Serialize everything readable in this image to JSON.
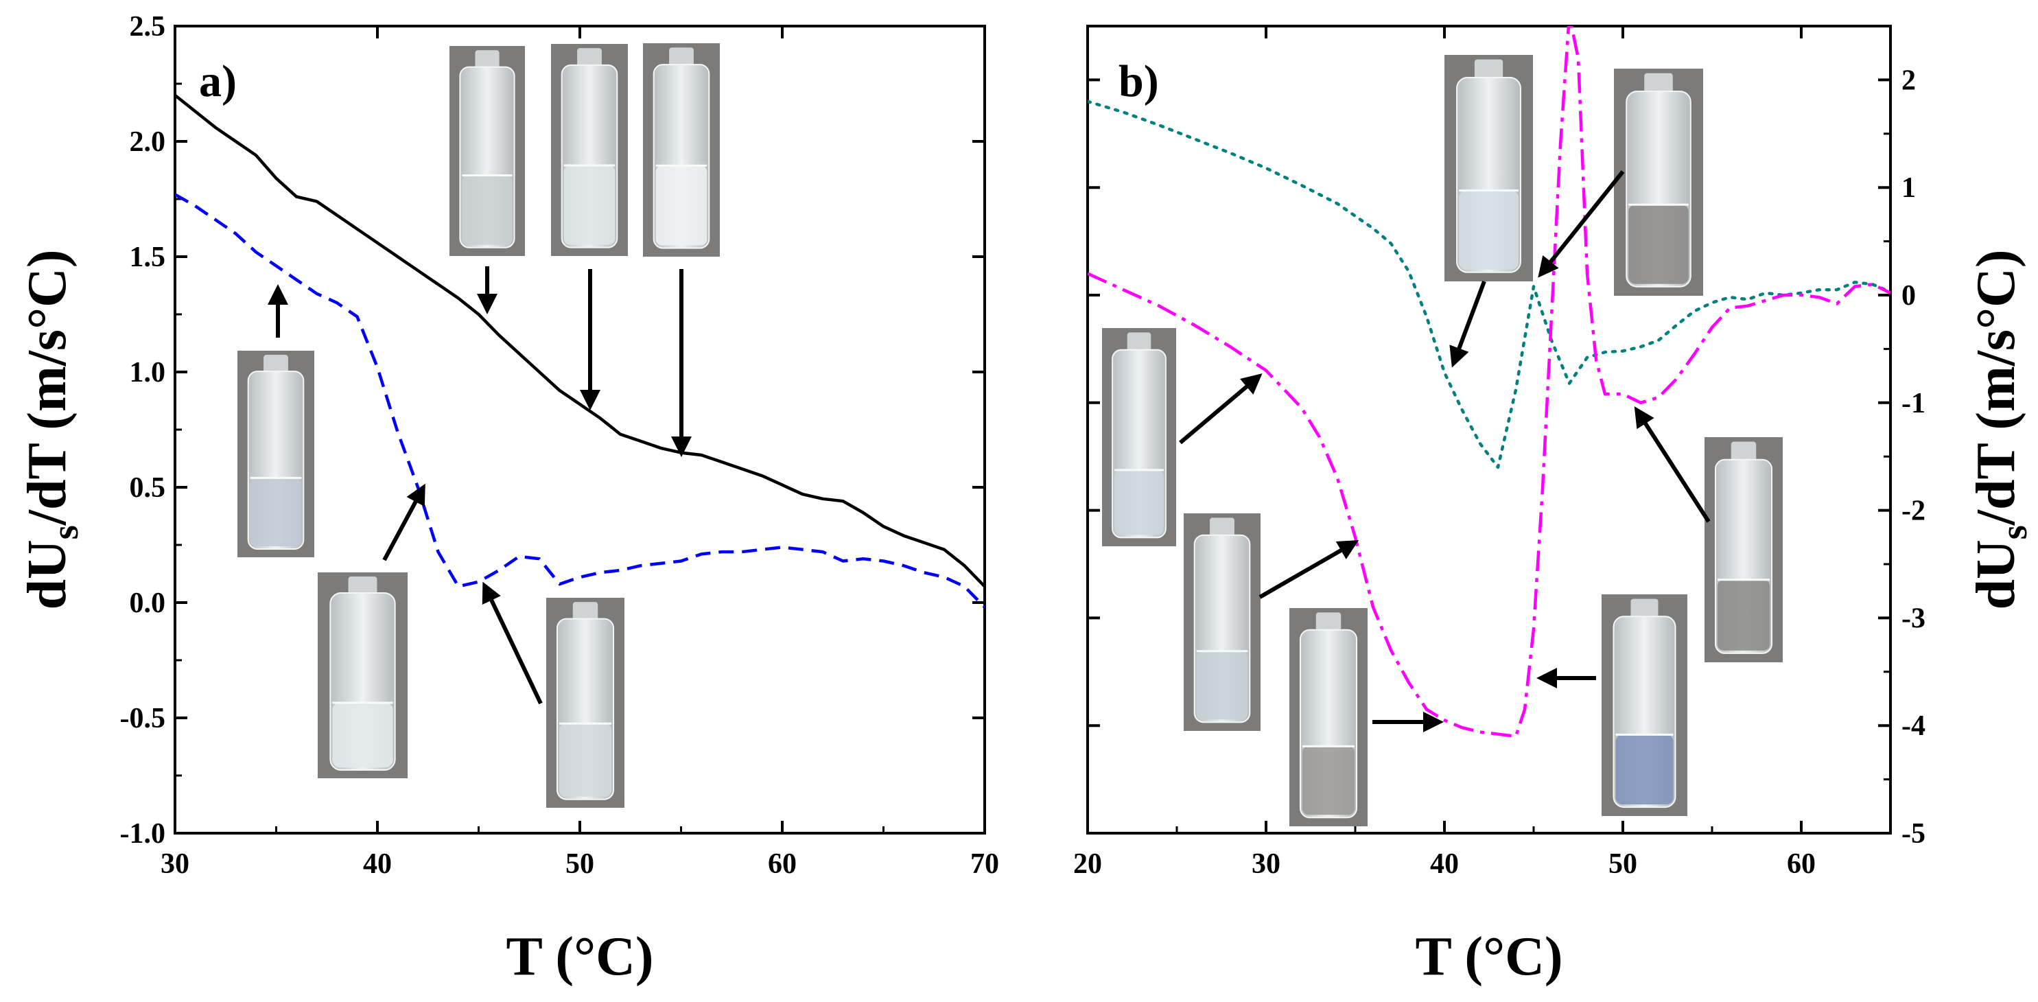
{
  "figure": {
    "panel_a": {
      "label": "a)",
      "xlabel": "T (°C)",
      "ylabel": "dU",
      "ylabel_sub": "s",
      "ylabel_rest": "/dT (m/s°C)"
    },
    "panel_b": {
      "label": "b)",
      "xlabel": "T (°C)",
      "ylabel": "dU",
      "ylabel_sub": "s",
      "ylabel_rest": "/dT (m/s°C)"
    }
  },
  "colors": {
    "black": "#000000",
    "blue": "#0000ff",
    "teal": "#00807f",
    "magenta": "#ff00ff",
    "vial_glass": "#d8dcdc",
    "vial_bg": "#7a7878"
  },
  "chart_data": [
    {
      "type": "line",
      "title": "a)",
      "xlabel": "T (°C)",
      "ylabel": "dUs/dT (m/s°C)",
      "xlim": [
        30,
        70
      ],
      "ylim": [
        -1.0,
        2.5
      ],
      "xticks": [
        "30",
        "40",
        "50",
        "60",
        "70"
      ],
      "yticks": [
        "-1.0",
        "-0.5",
        "0.0",
        "0.5",
        "1.0",
        "1.5",
        "2.0",
        "2.5"
      ],
      "series": [
        {
          "name": "solid",
          "color": "#000000",
          "dash": "solid",
          "x": [
            30,
            31,
            32,
            33,
            34,
            35,
            36,
            37,
            38,
            39,
            40,
            41,
            42,
            43,
            44,
            45,
            46,
            47,
            48,
            49,
            50,
            51,
            52,
            53,
            54,
            55,
            56,
            57,
            58,
            59,
            60,
            61,
            62,
            63,
            64,
            65,
            66,
            67,
            68,
            69,
            70
          ],
          "y": [
            2.2,
            2.13,
            2.06,
            2.0,
            1.94,
            1.84,
            1.76,
            1.74,
            1.68,
            1.62,
            1.56,
            1.5,
            1.44,
            1.38,
            1.32,
            1.25,
            1.16,
            1.08,
            1.0,
            0.92,
            0.86,
            0.8,
            0.73,
            0.7,
            0.67,
            0.65,
            0.64,
            0.61,
            0.58,
            0.55,
            0.51,
            0.47,
            0.45,
            0.44,
            0.39,
            0.33,
            0.29,
            0.26,
            0.23,
            0.16,
            0.07
          ]
        },
        {
          "name": "dashed",
          "color": "#0000ff",
          "dash": "dashed",
          "x": [
            30,
            31,
            32,
            33,
            34,
            35,
            36,
            37,
            38,
            39,
            40,
            41,
            42,
            43,
            44,
            45,
            46,
            47,
            48,
            49,
            50,
            51,
            52,
            53,
            54,
            55,
            56,
            57,
            58,
            59,
            60,
            61,
            62,
            63,
            64,
            65,
            66,
            67,
            68,
            69,
            70
          ],
          "y": [
            1.77,
            1.72,
            1.66,
            1.6,
            1.52,
            1.46,
            1.4,
            1.34,
            1.3,
            1.24,
            1.02,
            0.74,
            0.5,
            0.22,
            0.07,
            0.09,
            0.14,
            0.2,
            0.19,
            0.08,
            0.11,
            0.13,
            0.14,
            0.16,
            0.17,
            0.18,
            0.21,
            0.22,
            0.22,
            0.23,
            0.24,
            0.23,
            0.22,
            0.18,
            0.19,
            0.18,
            0.16,
            0.13,
            0.11,
            0.07,
            -0.02
          ]
        }
      ]
    },
    {
      "type": "line",
      "title": "b)",
      "xlabel": "T (°C)",
      "ylabel": "dUs/dT (m/s°C)",
      "xlim": [
        20,
        65
      ],
      "ylim": [
        -5,
        2.5
      ],
      "xticks": [
        "20",
        "30",
        "40",
        "50",
        "60"
      ],
      "yticks": [
        "-5",
        "-4",
        "-3",
        "-2",
        "-1",
        "0",
        "1",
        "2"
      ],
      "series": [
        {
          "name": "dotted",
          "color": "#00807f",
          "dash": "dotted",
          "x": [
            20,
            22,
            24,
            26,
            28,
            30,
            32,
            34,
            36,
            37,
            38,
            39,
            40,
            41,
            42,
            43,
            44,
            45,
            46,
            47,
            48,
            49,
            50,
            51,
            52,
            53,
            54,
            55,
            56,
            57,
            58,
            59,
            60,
            61,
            62,
            63,
            64,
            65
          ],
          "y": [
            1.8,
            1.7,
            1.58,
            1.45,
            1.32,
            1.18,
            1.02,
            0.85,
            0.62,
            0.48,
            0.22,
            -0.2,
            -0.72,
            -1.07,
            -1.38,
            -1.6,
            -0.88,
            0.08,
            -0.42,
            -0.82,
            -0.58,
            -0.53,
            -0.52,
            -0.48,
            -0.42,
            -0.28,
            -0.15,
            -0.07,
            -0.02,
            -0.04,
            0.02,
            0.0,
            0.02,
            0.05,
            0.05,
            0.12,
            0.1,
            0.03
          ]
        },
        {
          "name": "dash-dot",
          "color": "#ff00ff",
          "dash": "dashdot",
          "x": [
            20,
            22,
            24,
            26,
            28,
            30,
            32,
            33,
            34,
            35,
            36,
            37,
            38,
            39,
            40,
            41,
            42,
            43,
            44,
            44.5,
            45,
            45.5,
            46,
            46.5,
            47,
            47.5,
            48,
            48.5,
            49,
            50,
            51,
            52,
            53,
            54,
            55,
            56,
            57,
            58,
            59,
            60,
            61,
            62,
            63,
            64,
            65
          ],
          "y": [
            0.2,
            0.05,
            -0.1,
            -0.28,
            -0.48,
            -0.7,
            -1.05,
            -1.32,
            -1.7,
            -2.25,
            -2.9,
            -3.3,
            -3.6,
            -3.85,
            -3.95,
            -4.02,
            -4.06,
            -4.08,
            -4.1,
            -3.85,
            -3.1,
            -1.8,
            -0.2,
            1.4,
            2.6,
            2.2,
            0.2,
            -0.6,
            -0.92,
            -0.92,
            -1.0,
            -0.95,
            -0.78,
            -0.55,
            -0.3,
            -0.12,
            -0.1,
            -0.05,
            0.0,
            0.0,
            -0.02,
            -0.08,
            0.08,
            0.1,
            0.02
          ]
        }
      ]
    }
  ]
}
